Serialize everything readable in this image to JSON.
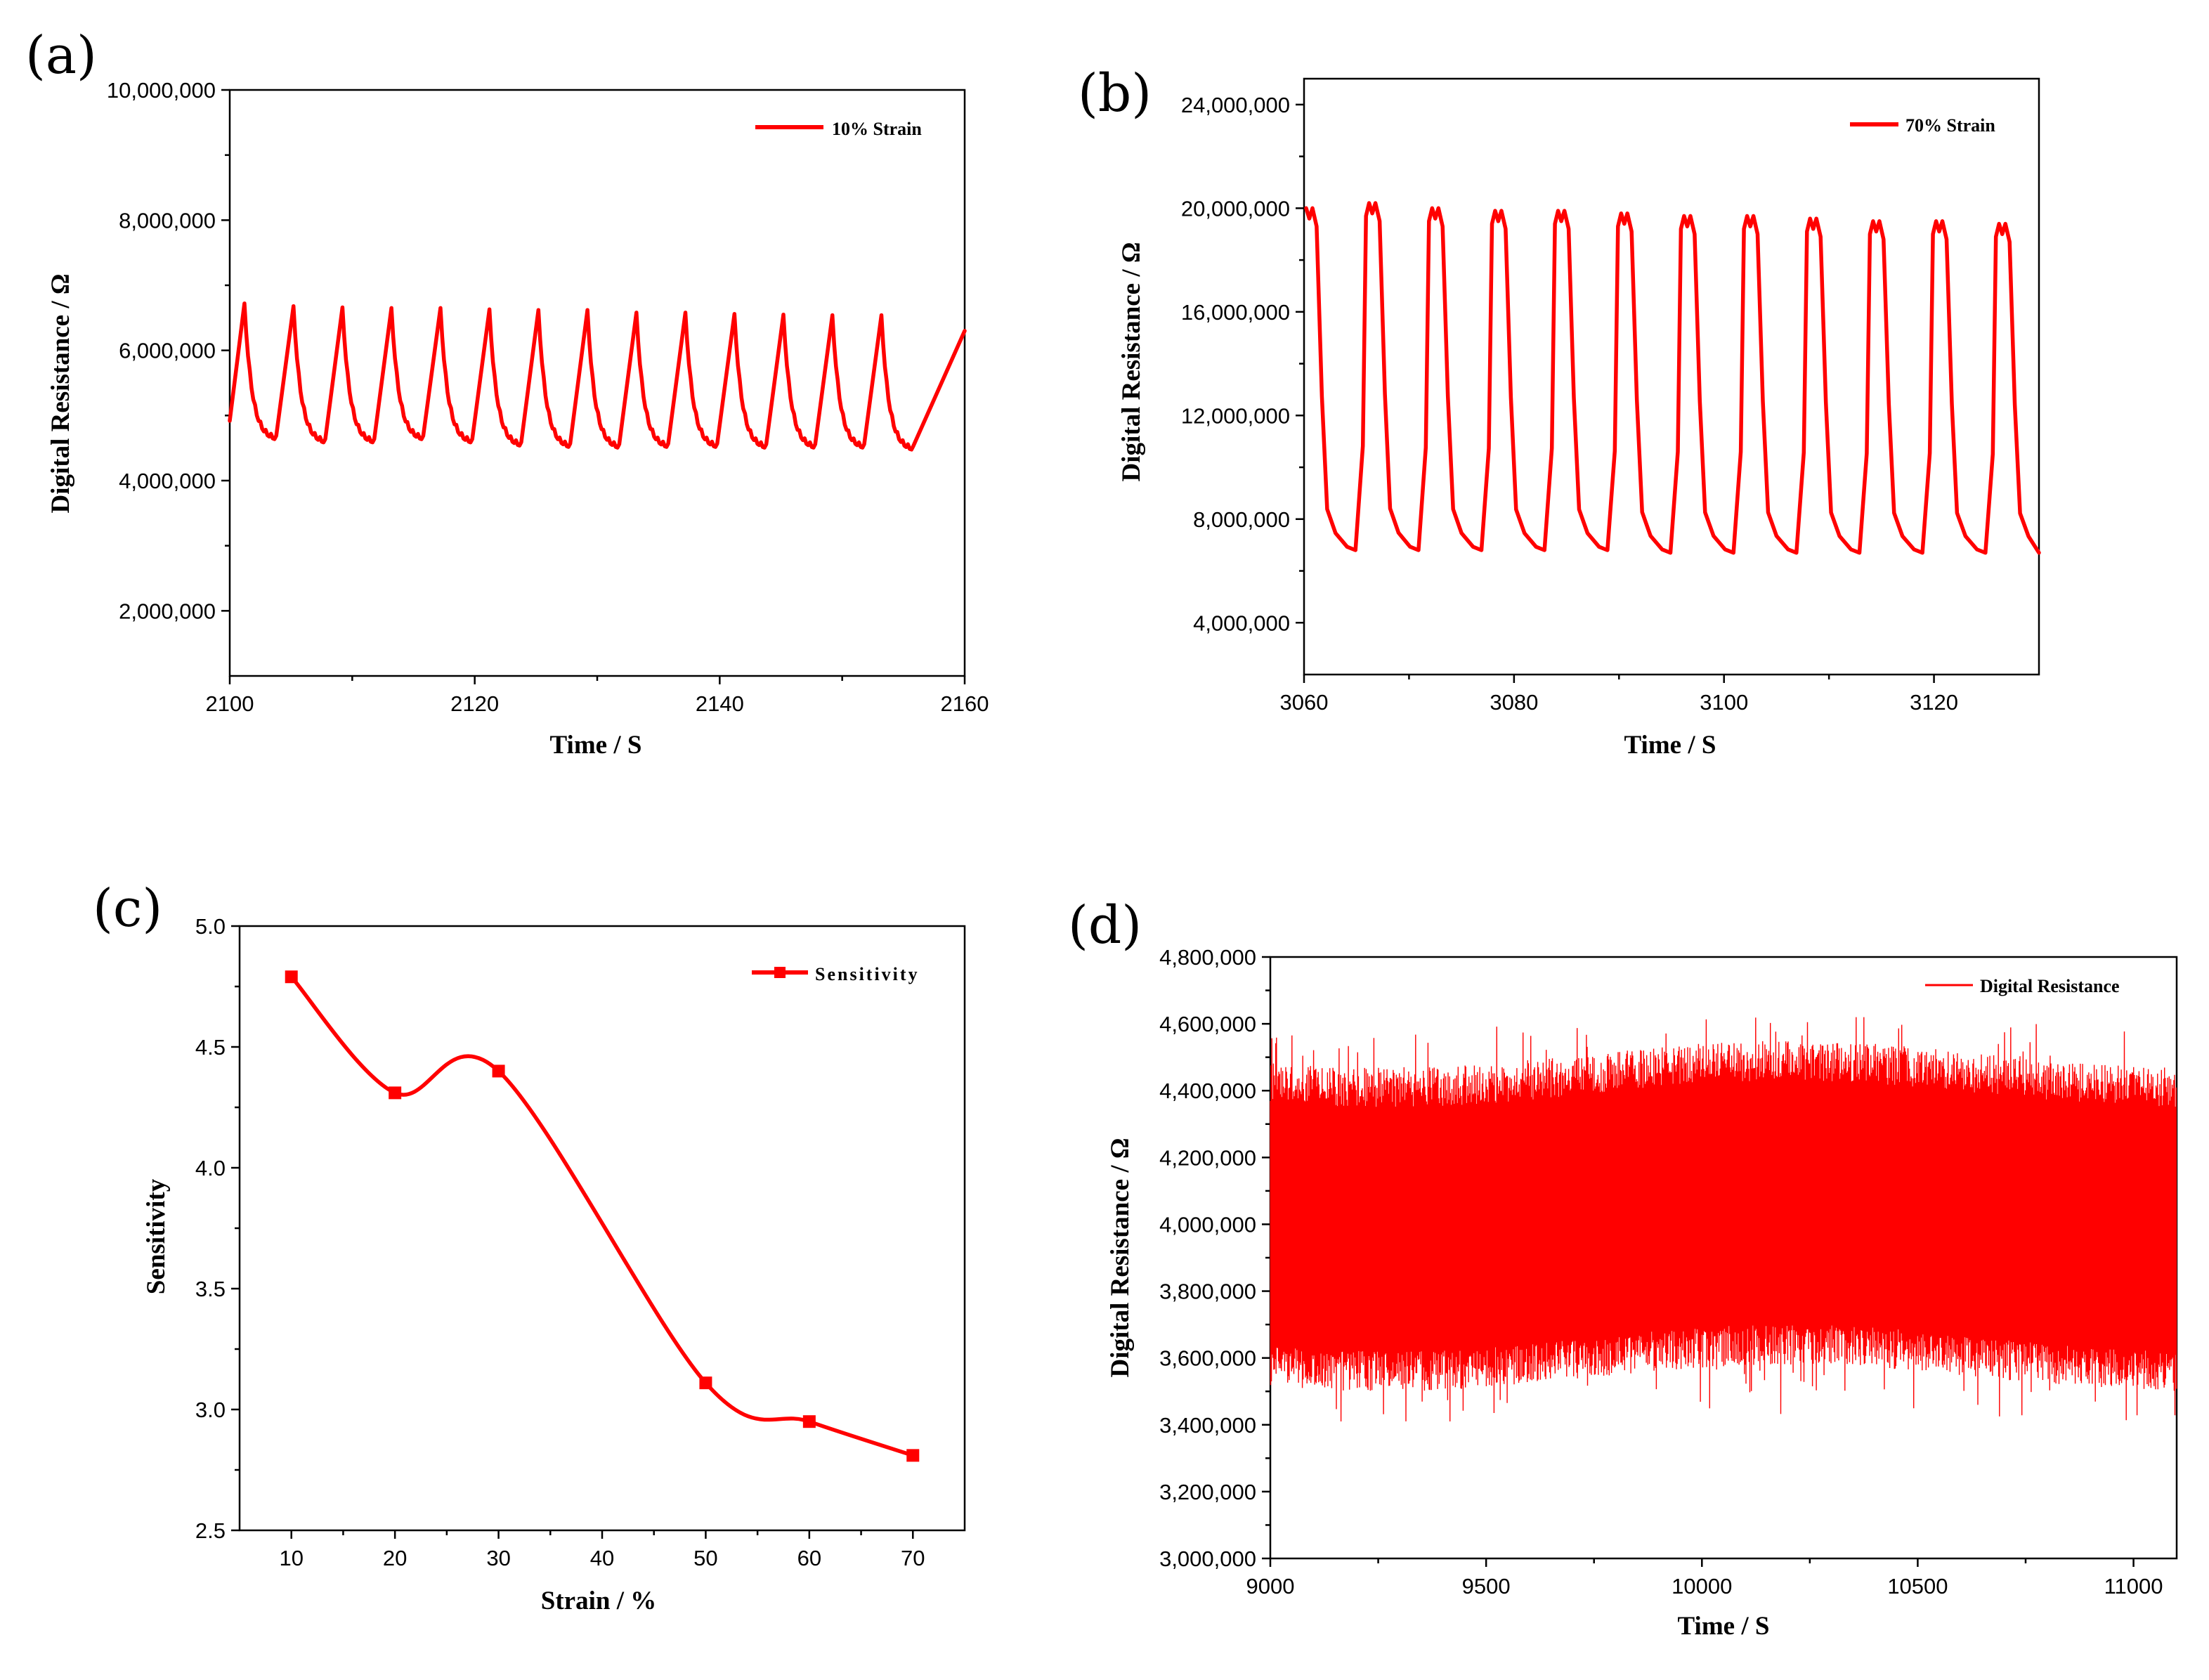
{
  "colors": {
    "series": "#ff0000",
    "axis": "#000000",
    "background": "#ffffff"
  },
  "chart_data": [
    {
      "panel": "(a)",
      "type": "line",
      "xlabel": "Time / S",
      "ylabel": "Digital Resistance / Ω",
      "xlim": [
        2100,
        2160
      ],
      "ylim": [
        1000000,
        10000000
      ],
      "x_ticks": [
        2100,
        2120,
        2140,
        2160
      ],
      "x_tick_labels": [
        "2100",
        "2120",
        "2140",
        "2160"
      ],
      "y_ticks": [
        2000000,
        4000000,
        6000000,
        8000000,
        10000000
      ],
      "y_tick_labels": [
        "2,000,000",
        "4,000,000",
        "6,000,000",
        "8,000,000",
        "10,000,000"
      ],
      "legend_position": "top-right",
      "series": [
        {
          "name": "10% Strain",
          "pattern": "periodic sawtooth cycles",
          "period_s": 4.0,
          "first_peak_s": 2101.2,
          "rise_fraction": 0.35,
          "x_end": 2160,
          "peaks": [
            6720000,
            6680000,
            6660000,
            6650000,
            6650000,
            6630000,
            6620000,
            6620000,
            6580000,
            6580000,
            6560000,
            6550000,
            6540000,
            6540000
          ],
          "troughs": [
            4600000,
            4550000,
            4550000,
            4600000,
            4550000,
            4500000,
            4480000,
            4470000,
            4480000,
            4480000,
            4470000,
            4470000,
            4470000,
            4440000
          ]
        }
      ]
    },
    {
      "panel": "(b)",
      "type": "line",
      "xlabel": "Time / S",
      "ylabel": "Digital Resistance / Ω",
      "xlim": [
        3060,
        3130
      ],
      "ylim": [
        2000000,
        25000000
      ],
      "x_ticks": [
        3060,
        3080,
        3100,
        3120
      ],
      "x_tick_labels": [
        "3060",
        "3080",
        "3100",
        "3120"
      ],
      "y_ticks": [
        4000000,
        8000000,
        12000000,
        16000000,
        20000000,
        24000000
      ],
      "y_tick_labels": [
        "4,000,000",
        "8,000,000",
        "12,000,000",
        "16,000,000",
        "20,000,000",
        "24,000,000"
      ],
      "legend_position": "top-right",
      "series": [
        {
          "name": "70% Strain",
          "pattern": "periodic square-like cycles",
          "period_s": 6.0,
          "first_peak_s": 3060.5,
          "x_end": 3130,
          "peaks": [
            20000000,
            20200000,
            20000000,
            19900000,
            19900000,
            19800000,
            19700000,
            19700000,
            19600000,
            19500000,
            19500000,
            19400000
          ],
          "troughs": [
            6800000,
            6800000,
            6800000,
            6800000,
            6800000,
            6700000,
            6700000,
            6700000,
            6700000,
            6700000,
            6700000,
            6700000
          ]
        }
      ]
    },
    {
      "panel": "(c)",
      "type": "line",
      "xlabel": "Strain / %",
      "ylabel": "Sensitivity",
      "xlim": [
        5,
        75
      ],
      "ylim": [
        2.5,
        5.0
      ],
      "x_ticks": [
        10,
        20,
        30,
        40,
        50,
        60,
        70
      ],
      "x_tick_labels": [
        "10",
        "20",
        "30",
        "40",
        "50",
        "60",
        "70"
      ],
      "y_ticks": [
        2.5,
        3.0,
        3.5,
        4.0,
        4.5,
        5.0
      ],
      "y_tick_labels": [
        "2.5",
        "3.0",
        "3.5",
        "4.0",
        "4.5",
        "5.0"
      ],
      "legend_position": "top-right",
      "x": [
        10,
        20,
        30,
        50,
        60,
        70
      ],
      "series": [
        {
          "name": "Sensitivity",
          "values": [
            4.79,
            4.31,
            4.4,
            3.11,
            2.95,
            2.81
          ]
        }
      ]
    },
    {
      "panel": "(d)",
      "type": "line",
      "xlabel": "Time / S",
      "ylabel": "Digital Resistance / Ω",
      "xlim": [
        9000,
        11100
      ],
      "ylim": [
        3000000,
        4800000
      ],
      "x_ticks": [
        9000,
        9500,
        10000,
        10500,
        11000
      ],
      "x_tick_labels": [
        "9000",
        "9500",
        "10000",
        "10500",
        "11000"
      ],
      "y_ticks": [
        3000000,
        3200000,
        3400000,
        3600000,
        3800000,
        4000000,
        4200000,
        4400000,
        4600000,
        4800000
      ],
      "y_tick_labels": [
        "3,000,000",
        "3,200,000",
        "3,400,000",
        "3,600,000",
        "3,800,000",
        "4,000,000",
        "4,200,000",
        "4,400,000",
        "4,600,000",
        "4,800,000"
      ],
      "legend_position": "top-right",
      "series": [
        {
          "name": "Digital Resistance",
          "pattern": "dense oscillation band",
          "x_start": 9000,
          "x_end": 11100,
          "band_upper": 4450000,
          "band_lower": 3600000,
          "max_spike": 4620000,
          "min_spike": 3410000
        }
      ]
    }
  ]
}
